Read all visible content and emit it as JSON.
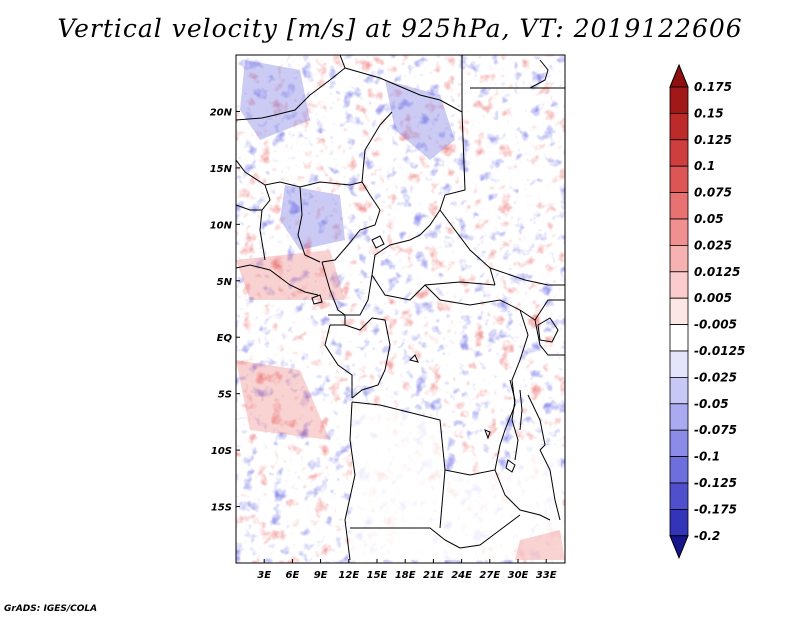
{
  "title": "Vertical velocity [m/s] at 925hPa, VT: 2019122606",
  "credit": "GrADS: IGES/COLA",
  "map": {
    "lon_range": [
      0,
      35
    ],
    "lat_range": [
      -20,
      25
    ],
    "lon_ticks": [
      {
        "value": 3,
        "label": "3E"
      },
      {
        "value": 6,
        "label": "6E"
      },
      {
        "value": 9,
        "label": "9E"
      },
      {
        "value": 12,
        "label": "12E"
      },
      {
        "value": 15,
        "label": "15E"
      },
      {
        "value": 18,
        "label": "18E"
      },
      {
        "value": 21,
        "label": "21E"
      },
      {
        "value": 24,
        "label": "24E"
      },
      {
        "value": 27,
        "label": "27E"
      },
      {
        "value": 30,
        "label": "30E"
      },
      {
        "value": 33,
        "label": "33E"
      }
    ],
    "lat_ticks": [
      {
        "value": 20,
        "label": "20N"
      },
      {
        "value": 15,
        "label": "15N"
      },
      {
        "value": 10,
        "label": "10N"
      },
      {
        "value": 5,
        "label": "5N"
      },
      {
        "value": 0,
        "label": "EQ"
      },
      {
        "value": -5,
        "label": "5S"
      },
      {
        "value": -10,
        "label": "10S"
      },
      {
        "value": -15,
        "label": "15S"
      }
    ]
  },
  "colorbar": {
    "levels": [
      {
        "label": "0.175",
        "color": "#a01818"
      },
      {
        "label": "0.15",
        "color": "#bc2a2a"
      },
      {
        "label": "0.125",
        "color": "#cf3e3e"
      },
      {
        "label": "0.1",
        "color": "#dd5656"
      },
      {
        "label": "0.075",
        "color": "#e87272"
      },
      {
        "label": "0.05",
        "color": "#f09090"
      },
      {
        "label": "0.025",
        "color": "#f6b2b2"
      },
      {
        "label": "0.0125",
        "color": "#facccc"
      },
      {
        "label": "0.005",
        "color": "#fde6e6"
      },
      {
        "label": "-0.005",
        "color": "#ffffff"
      },
      {
        "label": "-0.0125",
        "color": "#e4e4fb"
      },
      {
        "label": "-0.025",
        "color": "#c8c8f6"
      },
      {
        "label": "-0.05",
        "color": "#aaaaf0"
      },
      {
        "label": "-0.075",
        "color": "#8c8ce8"
      },
      {
        "label": "-0.1",
        "color": "#6e6edc"
      },
      {
        "label": "-0.125",
        "color": "#5050cc"
      },
      {
        "label": "-0.175",
        "color": "#3434b8"
      },
      {
        "label": "-0.2",
        "color": "#1c1ca0"
      }
    ],
    "top_arrow_color": "#8e1010",
    "bottom_arrow_color": "#16168c"
  }
}
